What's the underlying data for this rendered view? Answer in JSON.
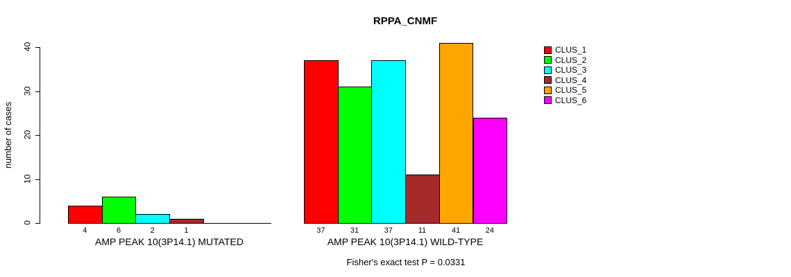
{
  "title": "RPPA_CNMF",
  "footer_annotation": "Fisher's exact test P = 0.0331",
  "legend": {
    "position": "right",
    "items": [
      {
        "label": "CLUS_1",
        "color": "#FF0000"
      },
      {
        "label": "CLUS_2",
        "color": "#00FF00"
      },
      {
        "label": "CLUS_3",
        "color": "#00FFFF"
      },
      {
        "label": "CLUS_4",
        "color": "#A52A2A"
      },
      {
        "label": "CLUS_5",
        "color": "#FFA500"
      },
      {
        "label": "CLUS_6",
        "color": "#FF00FF"
      }
    ]
  },
  "chart_data": {
    "type": "bar",
    "title": "RPPA_CNMF",
    "xlabel": "",
    "ylabel": "number of cases",
    "ylim": [
      0,
      40
    ],
    "yticks": [
      0,
      10,
      20,
      30,
      40
    ],
    "grid": false,
    "legend_position": "right",
    "categories": [
      "CLUS_1",
      "CLUS_2",
      "CLUS_3",
      "CLUS_4",
      "CLUS_5",
      "CLUS_6"
    ],
    "colors": [
      "#FF0000",
      "#00FF00",
      "#00FFFF",
      "#A52A2A",
      "#FFA500",
      "#FF00FF"
    ],
    "groups": [
      {
        "label": "AMP PEAK 10(3P14.1) MUTATED",
        "values": [
          4,
          6,
          2,
          1,
          0,
          0
        ],
        "bar_labels": [
          "4",
          "6",
          "2",
          "1",
          "",
          ""
        ]
      },
      {
        "label": "AMP PEAK 10(3P14.1) WILD-TYPE",
        "values": [
          37,
          31,
          37,
          11,
          41,
          24
        ],
        "bar_labels": [
          "37",
          "31",
          "37",
          "11",
          "41",
          "24"
        ]
      }
    ],
    "annotation": "Fisher's exact test P = 0.0331"
  }
}
